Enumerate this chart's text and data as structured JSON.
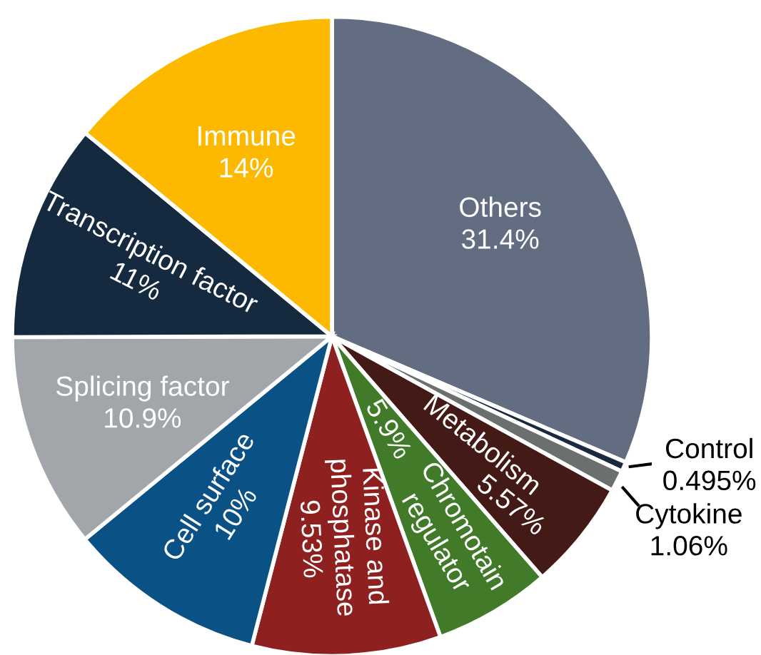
{
  "chart_data": {
    "type": "pie",
    "categories": [
      "Others",
      "Control",
      "Cytokine",
      "Metabolism",
      "Chromotain regulator",
      "Kinase and phosphatase",
      "Cell surface",
      "Splicing factor",
      "Transcription factor",
      "Immune"
    ],
    "values": [
      31.4,
      0.495,
      1.06,
      5.57,
      5.9,
      9.53,
      10,
      10.9,
      11,
      14
    ],
    "value_labels": [
      "31.4%",
      "0.495%",
      "1.06%",
      "5.57%",
      "5.9%",
      "9.53%",
      "10%",
      "10.9%",
      "11%",
      "14%"
    ],
    "colors": [
      "#636d82",
      "#1a2840",
      "#6b6f6d",
      "#431a16",
      "#417b2a",
      "#8f2020",
      "#0a5286",
      "#a2a5aa",
      "#152a3f",
      "#fdb900"
    ]
  }
}
